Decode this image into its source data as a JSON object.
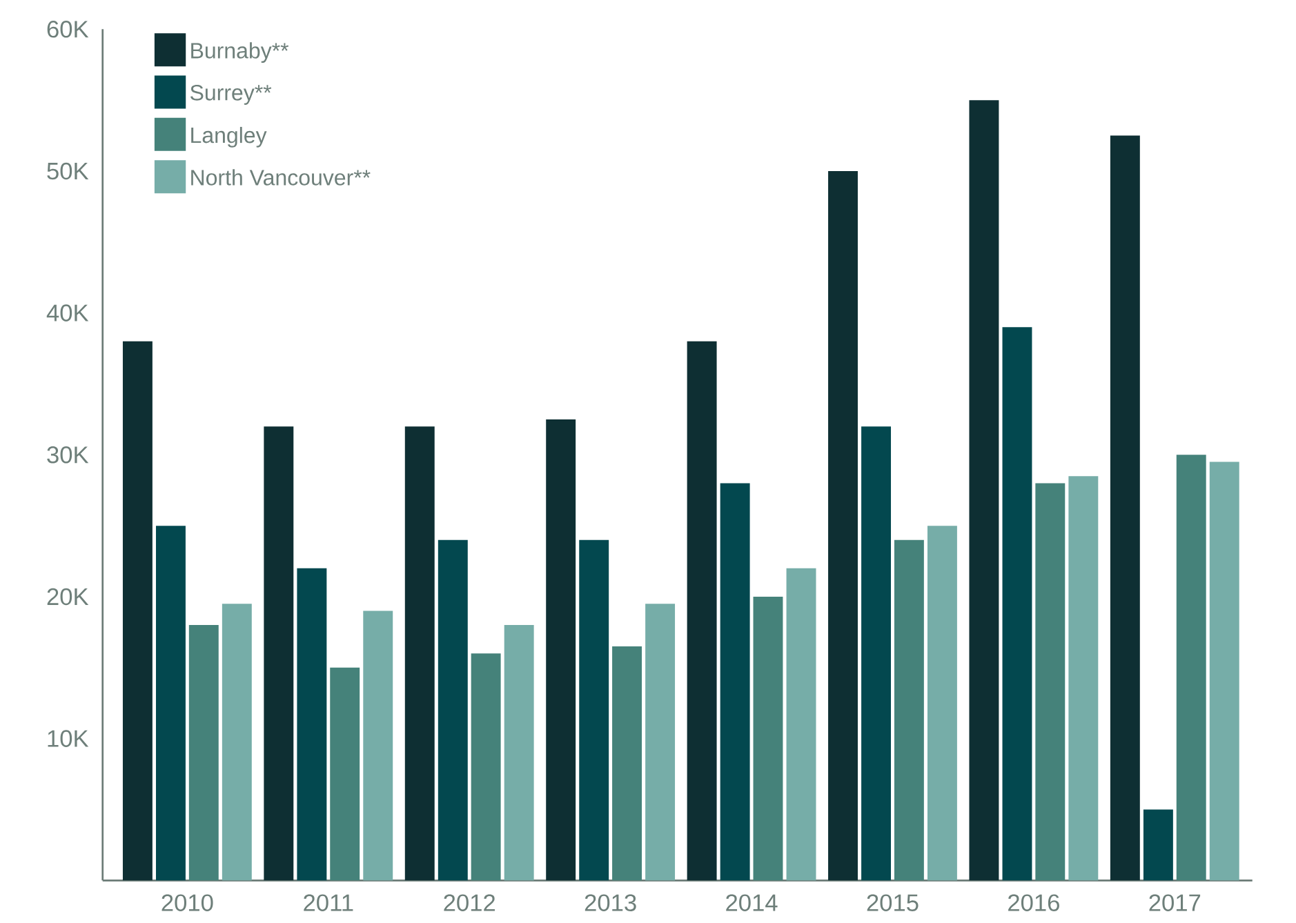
{
  "chart_data": {
    "type": "bar",
    "categories": [
      "2010",
      "2011",
      "2012",
      "2013",
      "2014",
      "2015",
      "2016",
      "2017"
    ],
    "series": [
      {
        "name": "Burnaby**",
        "color": "#0e2f33",
        "values": [
          38000,
          32000,
          32000,
          32500,
          38000,
          50000,
          55000,
          52500
        ]
      },
      {
        "name": "Surrey**",
        "color": "#03484f",
        "values": [
          25000,
          22000,
          24000,
          24000,
          28000,
          32000,
          39000,
          5000
        ]
      },
      {
        "name": "Langley",
        "color": "#45827a",
        "values": [
          18000,
          15000,
          16000,
          16500,
          20000,
          24000,
          28000,
          30000
        ]
      },
      {
        "name": "North Vancouver**",
        "color": "#76ada8",
        "values": [
          19500,
          19000,
          18000,
          19500,
          22000,
          25000,
          28500,
          29500
        ]
      }
    ],
    "ylim": [
      0,
      60000
    ],
    "yticks": [
      {
        "value": 10000,
        "label": "10K"
      },
      {
        "value": 20000,
        "label": "20K"
      },
      {
        "value": 30000,
        "label": "30K"
      },
      {
        "value": 40000,
        "label": "40K"
      },
      {
        "value": 50000,
        "label": "50K"
      },
      {
        "value": 60000,
        "label": "60K"
      }
    ],
    "legend": "top left"
  }
}
